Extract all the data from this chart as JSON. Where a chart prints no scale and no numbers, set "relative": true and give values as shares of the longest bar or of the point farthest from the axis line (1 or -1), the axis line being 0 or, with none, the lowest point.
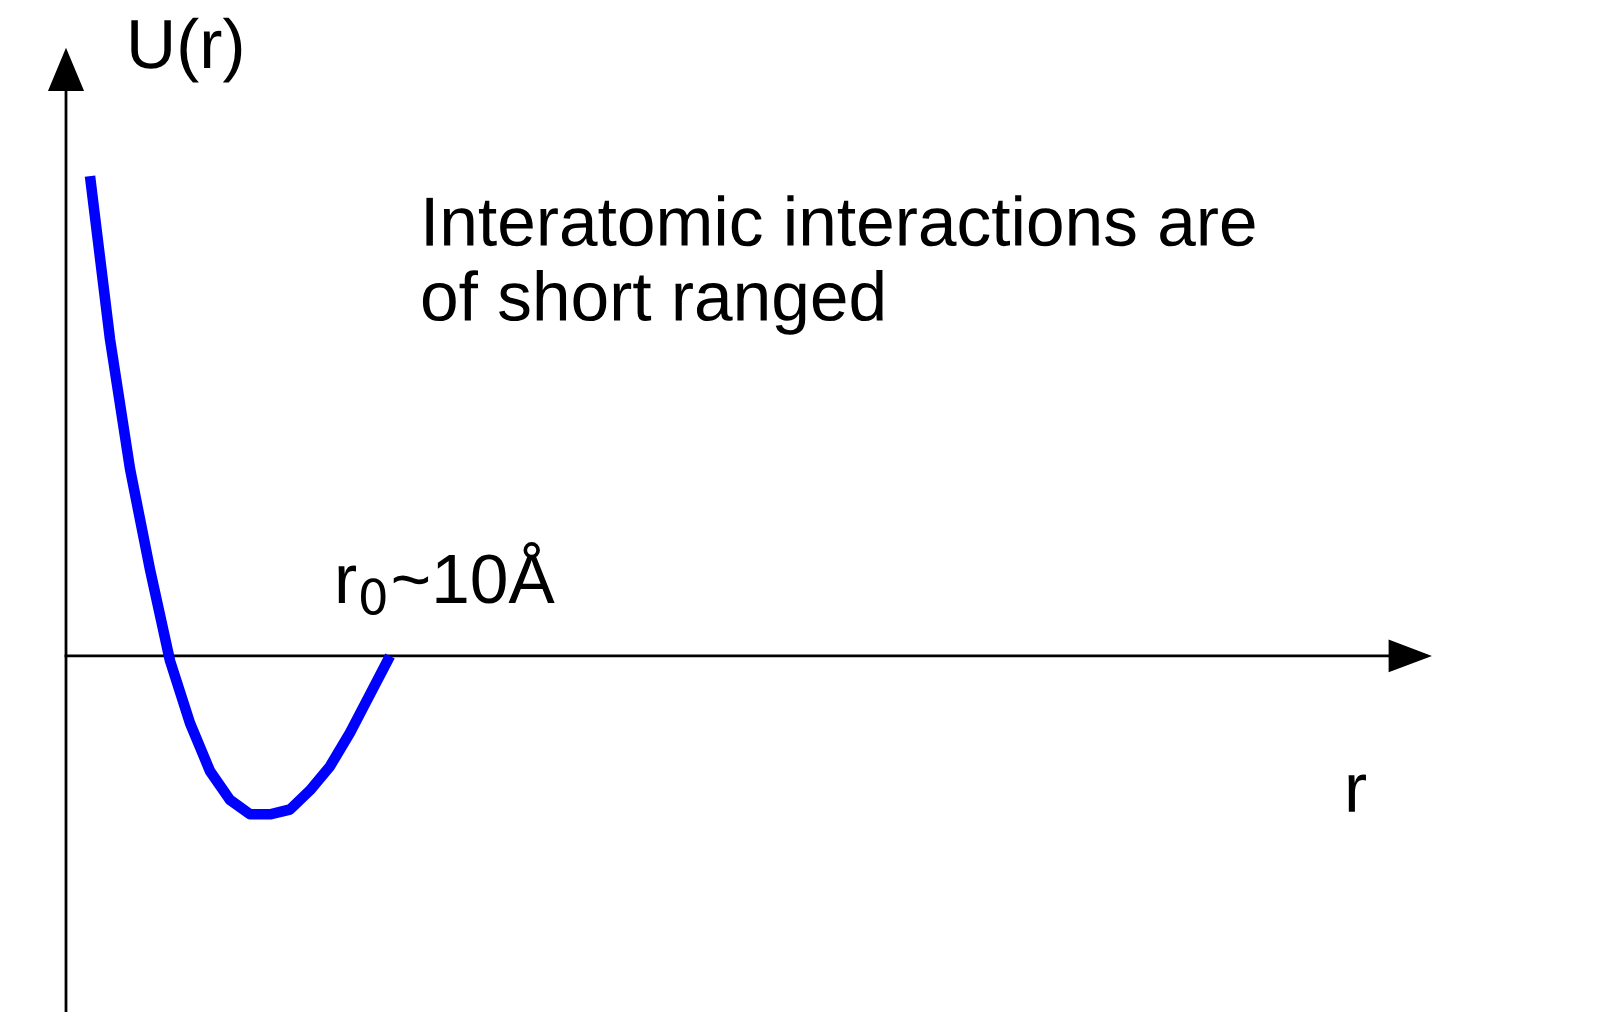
{
  "chart_data": {
    "type": "line",
    "relative": true,
    "ylabel": "U(r)",
    "annotations": [
      "Interatomic interactions are\nof short ranged",
      "r$_{0}$~10Å",
      "r"
    ],
    "categories": [
      null,
      null,
      null,
      null,
      null,
      null,
      null,
      null,
      null,
      null,
      null,
      null,
      null,
      null,
      null,
      null
    ],
    "series": [
      {
        "color": "#0000ff",
        "values": [
          1.0,
          0.66,
          0.39,
          0.18,
          -0.01,
          -0.14,
          -0.24,
          -0.3,
          -0.33,
          -0.33,
          -0.32,
          -0.28,
          -0.23,
          -0.16,
          -0.08,
          0.0
        ]
      }
    ]
  }
}
